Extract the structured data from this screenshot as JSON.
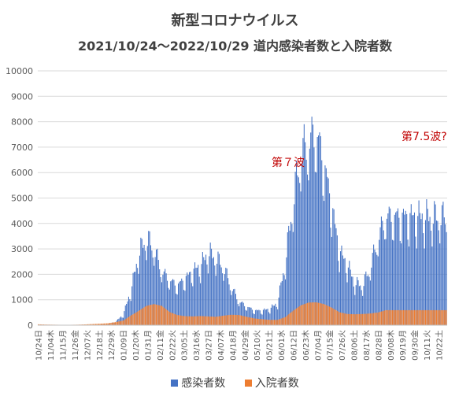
{
  "chart_data": {
    "type": "bar",
    "title": "新型コロナウイルス",
    "subtitle": "2021/10/24～2022/10/29 道内感染者数と入院者数",
    "ylim": [
      0,
      10000
    ],
    "yticks": [
      "0",
      "1000",
      "2000",
      "3000",
      "4000",
      "5000",
      "6000",
      "7000",
      "8000",
      "9000",
      "10000"
    ],
    "grid": true,
    "legend_position": "bottom",
    "xtick_labels": [
      "10/24日",
      "11/04木",
      "11/15月",
      "11/26金",
      "12/07火",
      "12/18土",
      "12/29水",
      "01/09日",
      "01/20木",
      "01/31月",
      "02/11金",
      "02/22火",
      "03/05土",
      "03/16水",
      "03/27日",
      "04/07木",
      "04/18月",
      "04/29金",
      "05/10火",
      "05/21土",
      "06/01水",
      "06/12日",
      "06/23木",
      "07/04月",
      "07/15金",
      "07/26火",
      "08/06土",
      "08/17水",
      "08/28日",
      "09/08木",
      "09/19月",
      "09/30金",
      "10/11火",
      "10/22土"
    ],
    "series": [
      {
        "name": "感染者数",
        "color": "#4472C4",
        "weekly_values": [
          5,
          3,
          4,
          8,
          8,
          10,
          4,
          6,
          20,
          45,
          125,
          395,
          1300,
          2700,
          3300,
          2900,
          2050,
          1700,
          1500,
          1750,
          2050,
          2250,
          2750,
          2550,
          2200,
          1450,
          900,
          700,
          550,
          550,
          620,
          850,
          2400,
          4700,
          6500,
          6900,
          7300,
          6100,
          4500,
          2800,
          2300,
          1600,
          1500,
          2200,
          3300,
          4100
        ]
      },
      {
        "name": "入院者数",
        "color": "#ED7D31",
        "weekly_values": [
          35,
          25,
          20,
          15,
          15,
          20,
          30,
          45,
          60,
          75,
          120,
          180,
          380,
          560,
          760,
          830,
          760,
          520,
          400,
          355,
          345,
          360,
          345,
          330,
          375,
          410,
          400,
          330,
          265,
          235,
          210,
          210,
          320,
          570,
          780,
          890,
          900,
          830,
          690,
          510,
          440,
          430,
          440,
          460,
          500,
          590
        ]
      }
    ],
    "annotations": [
      {
        "text": "第７波",
        "color": "#C00000"
      },
      {
        "text": "第7.5波?",
        "color": "#C00000"
      }
    ]
  }
}
